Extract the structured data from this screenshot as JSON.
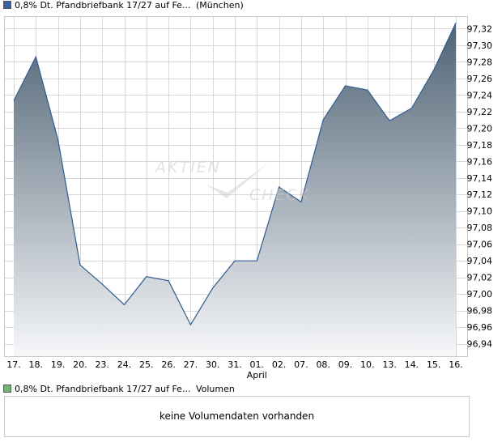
{
  "price_legend": {
    "series_name": "0,8% Dt. Pfandbriefbank 17/27 auf Fe...",
    "exchange": "(München)",
    "color": "#3d5fa6"
  },
  "volume_legend": {
    "series_name": "0,8% Dt. Pfandbriefbank 17/27 auf Fe...",
    "label": "Volumen",
    "color": "#6dba6d"
  },
  "volume_panel": {
    "message": "keine Volumendaten vorhanden"
  },
  "watermark": "AKTIEN CHECK",
  "colors": {
    "line": "#2f5c8f",
    "area_top": "#4f6374",
    "area_bottom": "#f6f7f9",
    "grid": "#d9d9d9"
  },
  "chart_data": {
    "type": "area",
    "title": "",
    "x": [
      "17.",
      "18.",
      "19.",
      "20.",
      "23.",
      "24.",
      "25.",
      "26.",
      "27.",
      "30.",
      "31.",
      "01.",
      "02.",
      "07.",
      "08.",
      "09.",
      "10.",
      "13.",
      "14.",
      "15.",
      "16."
    ],
    "x_month_labels": [
      {
        "index": 11,
        "label": "April"
      }
    ],
    "values": [
      97.233,
      97.286,
      97.186,
      97.035,
      97.012,
      96.987,
      97.021,
      97.016,
      96.963,
      97.007,
      97.04,
      97.04,
      97.129,
      97.111,
      97.21,
      97.251,
      97.246,
      97.209,
      97.224,
      97.27,
      97.327
    ],
    "ylim": [
      96.925,
      97.335
    ],
    "yticks": [
      "96,94",
      "96,96",
      "96,98",
      "97,00",
      "97,02",
      "97,04",
      "97,06",
      "97,08",
      "97,10",
      "97,12",
      "97,14",
      "97,16",
      "97,18",
      "97,20",
      "97,22",
      "97,24",
      "97,26",
      "97,28",
      "97,30",
      "97,32"
    ],
    "ytick_values": [
      96.94,
      96.96,
      96.98,
      97.0,
      97.02,
      97.04,
      97.06,
      97.08,
      97.1,
      97.12,
      97.14,
      97.16,
      97.18,
      97.2,
      97.22,
      97.24,
      97.26,
      97.28,
      97.3,
      97.32
    ],
    "grid": true,
    "yaxis_position": "right",
    "legend": "top-left"
  }
}
